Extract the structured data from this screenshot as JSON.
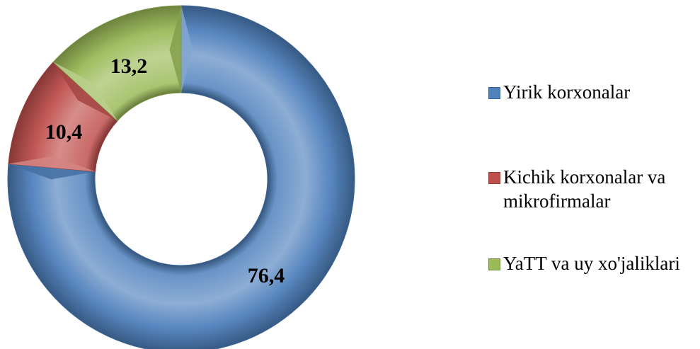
{
  "chart_data": {
    "type": "pie",
    "variant": "doughnut",
    "title": "",
    "categories": [
      "Yirik korxonalar",
      "Kichik korxonalar va mikrofirmalar",
      "YaTT va uy xo'jaliklari"
    ],
    "values": [
      76.4,
      10.4,
      13.2
    ],
    "labels": [
      "76,4",
      "10,4",
      "13,2"
    ],
    "colors": [
      "#4f81bd",
      "#c0504d",
      "#9bbb59"
    ],
    "legend_position": "right"
  },
  "legend": {
    "items": [
      {
        "label": "Yirik korxonalar",
        "color": "#4f81bd"
      },
      {
        "label": "Kichik korxonalar va mikrofirmalar",
        "color": "#c0504d"
      },
      {
        "label": "YaTT va uy xo'jaliklari",
        "color": "#9bbb59"
      }
    ]
  }
}
